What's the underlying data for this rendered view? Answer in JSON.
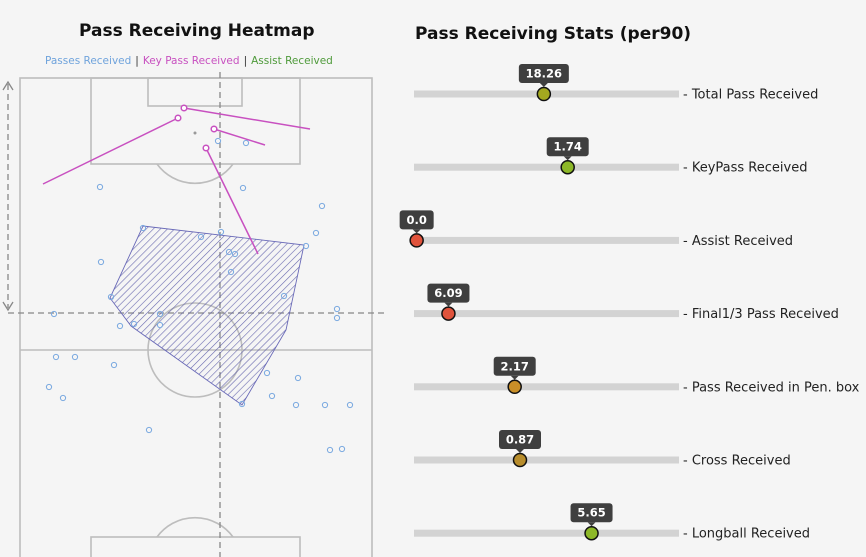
{
  "heatmap": {
    "title": "Pass Receiving Heatmap",
    "legend": [
      {
        "label": "Passes Received",
        "color": "#6fa3dc"
      },
      {
        "label": "Key Pass Received",
        "color": "#c850c0"
      },
      {
        "label": "Assist Received",
        "color": "#4e9a3a"
      }
    ],
    "separator": "|"
  },
  "stats": {
    "title": "Pass Receiving Stats (per90)"
  },
  "chart_data": [
    {
      "type": "scatter",
      "title": "Pass Receiving Heatmap",
      "series": [
        {
          "name": "Passes Received",
          "color": "#6fa3dc"
        },
        {
          "name": "Key Pass Received",
          "color": "#c850c0"
        },
        {
          "name": "Assist Received",
          "color": "#4e9a3a"
        }
      ]
    },
    {
      "type": "bar",
      "title": "Pass Receiving Stats (per90)",
      "categories": [
        "Total Pass Received",
        "KeyPass Received",
        "Assist Received",
        "Final1/3 Pass Received",
        "Pass Received in Pen. box",
        "Cross Received",
        "Longball Received"
      ],
      "values": [
        "18.26",
        "1.74",
        "0.0",
        "6.09",
        "2.17",
        "0.87",
        "5.65"
      ],
      "percentile": [
        49,
        58,
        1,
        13,
        38,
        40,
        67
      ],
      "marker_colors": [
        "#a3a820",
        "#8db828",
        "#e0533c",
        "#e0533c",
        "#c98f28",
        "#b88d2c",
        "#8db828"
      ]
    }
  ]
}
